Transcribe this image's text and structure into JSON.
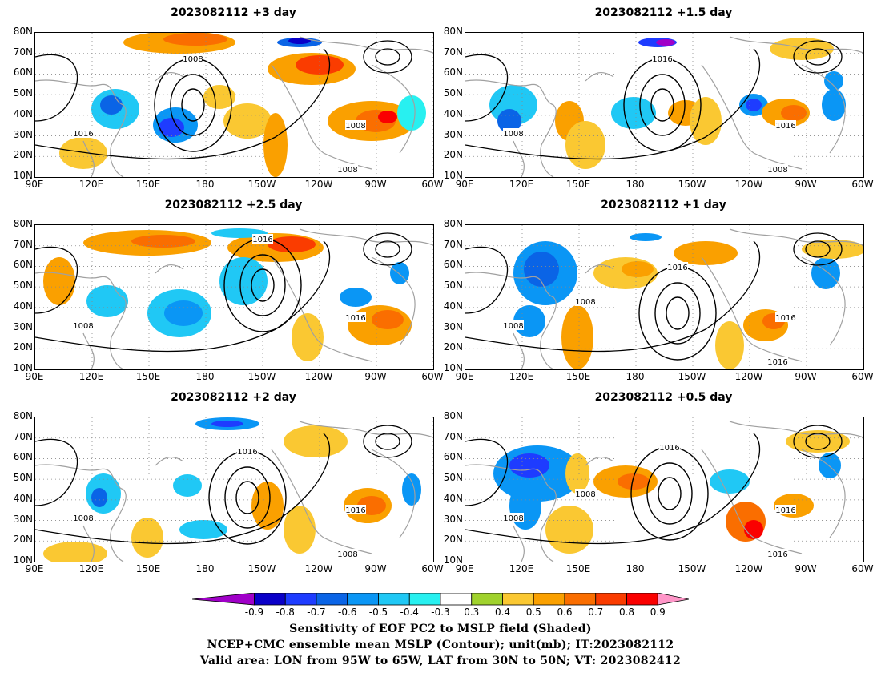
{
  "map": {
    "lat_ticks": [
      "80N",
      "70N",
      "60N",
      "50N",
      "40N",
      "30N",
      "20N",
      "10N"
    ],
    "lon_ticks": [
      "90E",
      "120E",
      "150E",
      "180",
      "150W",
      "120W",
      "90W",
      "60W"
    ],
    "lat_range": [
      10,
      80
    ],
    "lon_range_east": [
      90,
      300
    ],
    "contour_color": "#000000",
    "coast_color": "#a0a0a0"
  },
  "panels": [
    {
      "title": "2023082112 +3 day",
      "contour_labels": [
        "1008",
        "1016",
        "1008",
        "1008"
      ]
    },
    {
      "title": "2023082112 +1.5 day",
      "contour_labels": [
        "1016",
        "1008",
        "1016",
        "1008"
      ]
    },
    {
      "title": "2023082112 +2.5 day",
      "contour_labels": [
        "1016",
        "1008",
        "1016"
      ]
    },
    {
      "title": "2023082112 +1 day",
      "contour_labels": [
        "1016",
        "1008",
        "1016",
        "1016",
        "1008"
      ]
    },
    {
      "title": "2023082112 +2 day",
      "contour_labels": [
        "1016",
        "1008",
        "1016",
        "1008"
      ]
    },
    {
      "title": "2023082112 +0.5 day",
      "contour_labels": [
        "1016",
        "1008",
        "1016",
        "1016",
        "1008"
      ]
    }
  ],
  "colorbar": {
    "labels": [
      "-0.9",
      "-0.8",
      "-0.7",
      "-0.6",
      "-0.5",
      "-0.4",
      "-0.3",
      "0.3",
      "0.4",
      "0.5",
      "0.6",
      "0.7",
      "0.8",
      "0.9"
    ],
    "colors": [
      "#a000c8",
      "#0a00c8",
      "#1e3cff",
      "#0a64e6",
      "#0a96f5",
      "#20c8f5",
      "#28f0f0",
      "#ffffff",
      "#a0d22d",
      "#fac832",
      "#faa000",
      "#fa6e00",
      "#fa3c00",
      "#fa0000",
      "#ff96c8"
    ]
  },
  "caption": {
    "line1": "Sensitivity of EOF PC2 to MSLP field (Shaded)",
    "line2": "NCEP+CMC ensemble mean MSLP (Contour); unit(mb); IT:2023082112",
    "line3": "Valid area: LON from 95W to 65W, LAT from 30N to 50N; VT: 2023082412"
  }
}
